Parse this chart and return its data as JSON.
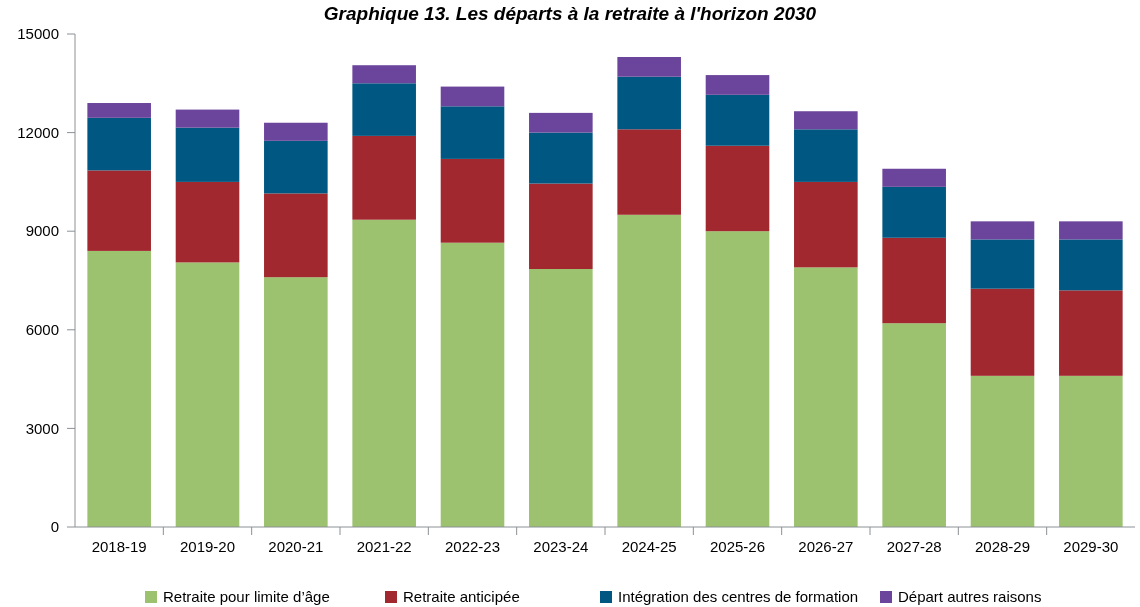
{
  "chart_data": {
    "type": "bar",
    "stacked": true,
    "title": "Graphique 13. Les départs à la retraite à l'horizon 2030",
    "categories": [
      "2018-19",
      "2019-20",
      "2020-21",
      "2021-22",
      "2022-23",
      "2023-24",
      "2024-25",
      "2025-26",
      "2026-27",
      "2027-28",
      "2028-29",
      "2029-30"
    ],
    "series": [
      {
        "name": "Retraite pour limite d’âge",
        "color": "#9dc26f",
        "values": [
          8400,
          8050,
          7600,
          9350,
          8650,
          7850,
          9500,
          9000,
          7900,
          6200,
          4600,
          4600
        ]
      },
      {
        "name": "Retraite anticipée",
        "color": "#a0282e",
        "values": [
          2450,
          2450,
          2550,
          2550,
          2550,
          2600,
          2600,
          2600,
          2600,
          2600,
          2650,
          2600
        ]
      },
      {
        "name": "Intégration des centres de formation",
        "color": "#005782",
        "values": [
          1600,
          1650,
          1600,
          1600,
          1600,
          1550,
          1600,
          1550,
          1600,
          1550,
          1500,
          1550
        ]
      },
      {
        "name": "Départ autres raisons",
        "color": "#6b459b",
        "values": [
          450,
          550,
          550,
          550,
          600,
          600,
          600,
          600,
          550,
          550,
          550,
          550
        ]
      }
    ],
    "ylim": [
      0,
      15000
    ],
    "yticks": [
      0,
      3000,
      6000,
      9000,
      12000,
      15000
    ],
    "grid": false,
    "legend": "bottom"
  }
}
